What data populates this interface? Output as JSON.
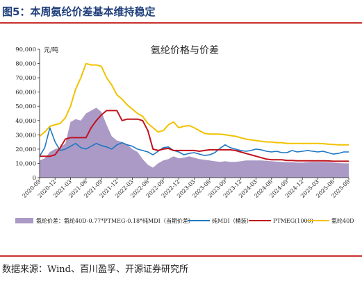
{
  "figure": {
    "title": "图5：本周氨纶价差基本维持稳定",
    "source": "数据来源：Wind、百川盈孚、开源证券研究所"
  },
  "colors": {
    "title": "#1f3f7a",
    "rule": "#c9302c",
    "spread": "#ab9ac6",
    "mdi": "#1f77c1",
    "ptmeg": "#c0121b",
    "spandex": "#f2c200"
  },
  "chart_data": {
    "type": "area",
    "title": "氨纶价格与价差",
    "ylabel": "元/吨",
    "ylim": [
      0,
      90000
    ],
    "yticks": [
      "0",
      "10,000",
      "20,000",
      "30,000",
      "40,000",
      "50,000",
      "60,000",
      "70,000",
      "80,000",
      "90,000"
    ],
    "xlim": [
      "2020-09",
      "2025-09"
    ],
    "xticks": [
      "2020-09",
      "2020-12",
      "2021-03",
      "2021-06",
      "2021-09",
      "2021-12",
      "2022-03",
      "2022-06",
      "2022-09",
      "2022-12",
      "2023-03",
      "2023-06",
      "2023-09",
      "2023-12",
      "2024-03",
      "2024-06",
      "2024-09",
      "2024-12",
      "2025-03",
      "2025-06",
      "2025-09"
    ],
    "grid": false,
    "legend_position": "bottom",
    "series": [
      {
        "name": "氨纶价差：氨纶40D-0.77*PTMEG-0.18*纯MDI（当期价差）",
        "kind": "area",
        "points": [
          [
            "2020-09",
            12000
          ],
          [
            "2020-10",
            13500
          ],
          [
            "2020-11",
            18000
          ],
          [
            "2020-12",
            20000
          ],
          [
            "2021-01",
            21000
          ],
          [
            "2021-02",
            24000
          ],
          [
            "2021-03",
            39000
          ],
          [
            "2021-04",
            41000
          ],
          [
            "2021-05",
            40000
          ],
          [
            "2021-06",
            45000
          ],
          [
            "2021-07",
            47000
          ],
          [
            "2021-08",
            49000
          ],
          [
            "2021-09",
            46000
          ],
          [
            "2021-10",
            37000
          ],
          [
            "2021-11",
            29000
          ],
          [
            "2021-12",
            26000
          ],
          [
            "2022-01",
            25000
          ],
          [
            "2022-02",
            23000
          ],
          [
            "2022-03",
            20000
          ],
          [
            "2022-04",
            18000
          ],
          [
            "2022-05",
            13000
          ],
          [
            "2022-06",
            9000
          ],
          [
            "2022-07",
            7000
          ],
          [
            "2022-08",
            10000
          ],
          [
            "2022-09",
            12000
          ],
          [
            "2022-10",
            13000
          ],
          [
            "2022-11",
            15000
          ],
          [
            "2022-12",
            13500
          ],
          [
            "2023-01",
            14000
          ],
          [
            "2023-02",
            15000
          ],
          [
            "2023-03",
            14000
          ],
          [
            "2023-04",
            13000
          ],
          [
            "2023-05",
            12500
          ],
          [
            "2023-06",
            12000
          ],
          [
            "2023-07",
            11500
          ],
          [
            "2023-08",
            11000
          ],
          [
            "2023-09",
            11500
          ],
          [
            "2023-10",
            11000
          ],
          [
            "2023-11",
            11000
          ],
          [
            "2023-12",
            11500
          ],
          [
            "2024-01",
            12000
          ],
          [
            "2024-02",
            12000
          ],
          [
            "2024-03",
            12000
          ],
          [
            "2024-04",
            12000
          ],
          [
            "2024-05",
            11800
          ],
          [
            "2024-06",
            11500
          ],
          [
            "2024-07",
            11200
          ],
          [
            "2024-08",
            11000
          ],
          [
            "2024-09",
            10800
          ],
          [
            "2024-10",
            10800
          ],
          [
            "2024-11",
            10500
          ],
          [
            "2024-12",
            10500
          ],
          [
            "2025-01",
            10800
          ],
          [
            "2025-02",
            11000
          ],
          [
            "2025-03",
            11000
          ],
          [
            "2025-04",
            11000
          ],
          [
            "2025-05",
            10800
          ],
          [
            "2025-06",
            10500
          ],
          [
            "2025-07",
            10200
          ],
          [
            "2025-08",
            10000
          ],
          [
            "2025-09",
            10000
          ]
        ]
      },
      {
        "name": "纯MDI（桶装）",
        "kind": "line",
        "points": [
          [
            "2020-09",
            15000
          ],
          [
            "2020-10",
            21000
          ],
          [
            "2020-11",
            35000
          ],
          [
            "2020-12",
            25000
          ],
          [
            "2021-01",
            19000
          ],
          [
            "2021-02",
            20000
          ],
          [
            "2021-03",
            22000
          ],
          [
            "2021-04",
            24000
          ],
          [
            "2021-05",
            21000
          ],
          [
            "2021-06",
            20000
          ],
          [
            "2021-07",
            22000
          ],
          [
            "2021-08",
            24000
          ],
          [
            "2021-09",
            22500
          ],
          [
            "2021-10",
            21500
          ],
          [
            "2021-11",
            20000
          ],
          [
            "2021-12",
            23000
          ],
          [
            "2022-01",
            24500
          ],
          [
            "2022-02",
            23000
          ],
          [
            "2022-03",
            22000
          ],
          [
            "2022-04",
            20000
          ],
          [
            "2022-05",
            19000
          ],
          [
            "2022-06",
            18000
          ],
          [
            "2022-07",
            16000
          ],
          [
            "2022-08",
            18500
          ],
          [
            "2022-09",
            21000
          ],
          [
            "2022-10",
            21500
          ],
          [
            "2022-11",
            19000
          ],
          [
            "2022-12",
            18000
          ],
          [
            "2023-01",
            16000
          ],
          [
            "2023-02",
            17000
          ],
          [
            "2023-03",
            17500
          ],
          [
            "2023-04",
            16500
          ],
          [
            "2023-05",
            15500
          ],
          [
            "2023-06",
            16000
          ],
          [
            "2023-07",
            17500
          ],
          [
            "2023-08",
            20500
          ],
          [
            "2023-09",
            23000
          ],
          [
            "2023-10",
            21000
          ],
          [
            "2023-11",
            20000
          ],
          [
            "2023-12",
            19000
          ],
          [
            "2024-01",
            18500
          ],
          [
            "2024-02",
            19000
          ],
          [
            "2024-03",
            20000
          ],
          [
            "2024-04",
            19500
          ],
          [
            "2024-05",
            18500
          ],
          [
            "2024-06",
            18000
          ],
          [
            "2024-07",
            18500
          ],
          [
            "2024-08",
            17500
          ],
          [
            "2024-09",
            17500
          ],
          [
            "2024-10",
            19000
          ],
          [
            "2024-11",
            18000
          ],
          [
            "2024-12",
            18500
          ],
          [
            "2025-01",
            19000
          ],
          [
            "2025-02",
            18500
          ],
          [
            "2025-03",
            18000
          ],
          [
            "2025-04",
            18500
          ],
          [
            "2025-05",
            17500
          ],
          [
            "2025-06",
            16500
          ],
          [
            "2025-07",
            17000
          ],
          [
            "2025-08",
            18000
          ],
          [
            "2025-09",
            18000
          ]
        ]
      },
      {
        "name": "PTMEG(1000)",
        "kind": "line",
        "points": [
          [
            "2020-09",
            15000
          ],
          [
            "2020-10",
            15000
          ],
          [
            "2020-11",
            15000
          ],
          [
            "2020-12",
            16000
          ],
          [
            "2021-01",
            21000
          ],
          [
            "2021-02",
            27000
          ],
          [
            "2021-03",
            28000
          ],
          [
            "2021-04",
            28000
          ],
          [
            "2021-05",
            28000
          ],
          [
            "2021-06",
            28000
          ],
          [
            "2021-07",
            35000
          ],
          [
            "2021-08",
            40000
          ],
          [
            "2021-09",
            44000
          ],
          [
            "2021-10",
            47000
          ],
          [
            "2021-11",
            47000
          ],
          [
            "2021-12",
            47000
          ],
          [
            "2022-01",
            40000
          ],
          [
            "2022-02",
            41000
          ],
          [
            "2022-03",
            41000
          ],
          [
            "2022-04",
            41000
          ],
          [
            "2022-05",
            40000
          ],
          [
            "2022-06",
            33000
          ],
          [
            "2022-07",
            20000
          ],
          [
            "2022-08",
            19000
          ],
          [
            "2022-09",
            20000
          ],
          [
            "2022-10",
            20500
          ],
          [
            "2022-11",
            19000
          ],
          [
            "2022-12",
            19000
          ],
          [
            "2023-01",
            19000
          ],
          [
            "2023-02",
            19000
          ],
          [
            "2023-03",
            19000
          ],
          [
            "2023-04",
            18500
          ],
          [
            "2023-05",
            19000
          ],
          [
            "2023-06",
            19500
          ],
          [
            "2023-07",
            19500
          ],
          [
            "2023-08",
            19500
          ],
          [
            "2023-09",
            19500
          ],
          [
            "2023-10",
            19500
          ],
          [
            "2023-11",
            19000
          ],
          [
            "2023-12",
            18000
          ],
          [
            "2024-01",
            17000
          ],
          [
            "2024-02",
            16000
          ],
          [
            "2024-03",
            15000
          ],
          [
            "2024-04",
            14000
          ],
          [
            "2024-05",
            13000
          ],
          [
            "2024-06",
            12500
          ],
          [
            "2024-07",
            12500
          ],
          [
            "2024-08",
            12500
          ],
          [
            "2024-09",
            12000
          ],
          [
            "2024-10",
            12000
          ],
          [
            "2024-11",
            11800
          ],
          [
            "2024-12",
            11800
          ],
          [
            "2025-01",
            11800
          ],
          [
            "2025-02",
            11800
          ],
          [
            "2025-03",
            11800
          ],
          [
            "2025-04",
            11800
          ],
          [
            "2025-05",
            11700
          ],
          [
            "2025-06",
            11500
          ],
          [
            "2025-07",
            11500
          ],
          [
            "2025-08",
            11500
          ],
          [
            "2025-09",
            11500
          ]
        ]
      },
      {
        "name": "氨纶40D",
        "kind": "line",
        "points": [
          [
            "2020-09",
            29000
          ],
          [
            "2020-10",
            32000
          ],
          [
            "2020-11",
            36000
          ],
          [
            "2020-12",
            37000
          ],
          [
            "2021-01",
            38000
          ],
          [
            "2021-02",
            42000
          ],
          [
            "2021-03",
            50000
          ],
          [
            "2021-04",
            62000
          ],
          [
            "2021-05",
            70000
          ],
          [
            "2021-06",
            80000
          ],
          [
            "2021-07",
            79000
          ],
          [
            "2021-08",
            79000
          ],
          [
            "2021-09",
            78000
          ],
          [
            "2021-10",
            70000
          ],
          [
            "2021-11",
            65000
          ],
          [
            "2021-12",
            58000
          ],
          [
            "2022-01",
            55000
          ],
          [
            "2022-02",
            51000
          ],
          [
            "2022-03",
            48000
          ],
          [
            "2022-04",
            45000
          ],
          [
            "2022-05",
            43000
          ],
          [
            "2022-06",
            38000
          ],
          [
            "2022-07",
            35000
          ],
          [
            "2022-08",
            32000
          ],
          [
            "2022-09",
            33000
          ],
          [
            "2022-10",
            37000
          ],
          [
            "2022-11",
            39000
          ],
          [
            "2022-12",
            35000
          ],
          [
            "2023-01",
            36000
          ],
          [
            "2023-02",
            36500
          ],
          [
            "2023-03",
            35000
          ],
          [
            "2023-04",
            33000
          ],
          [
            "2023-05",
            31000
          ],
          [
            "2023-06",
            30500
          ],
          [
            "2023-07",
            30500
          ],
          [
            "2023-08",
            30500
          ],
          [
            "2023-09",
            30000
          ],
          [
            "2023-10",
            29500
          ],
          [
            "2023-11",
            29000
          ],
          [
            "2023-12",
            28000
          ],
          [
            "2024-01",
            27000
          ],
          [
            "2024-02",
            26500
          ],
          [
            "2024-03",
            26000
          ],
          [
            "2024-04",
            25500
          ],
          [
            "2024-05",
            25000
          ],
          [
            "2024-06",
            25000
          ],
          [
            "2024-07",
            24500
          ],
          [
            "2024-08",
            24500
          ],
          [
            "2024-09",
            24000
          ],
          [
            "2024-10",
            24000
          ],
          [
            "2024-11",
            24000
          ],
          [
            "2024-12",
            24000
          ],
          [
            "2025-01",
            24000
          ],
          [
            "2025-02",
            24000
          ],
          [
            "2025-03",
            24000
          ],
          [
            "2025-04",
            23800
          ],
          [
            "2025-05",
            23500
          ],
          [
            "2025-06",
            23200
          ],
          [
            "2025-07",
            23000
          ],
          [
            "2025-08",
            23000
          ],
          [
            "2025-09",
            23000
          ]
        ]
      }
    ]
  }
}
